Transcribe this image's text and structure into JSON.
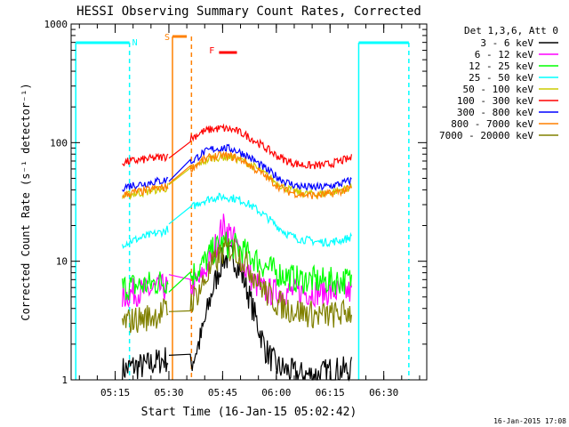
{
  "chart_data": {
    "type": "line",
    "title": "HESSI Observing Summary Count Rates, Corrected",
    "xlabel": "Start Time (16-Jan-15 05:02:42)",
    "ylabel": "Corrected Count Rate (s⁻¹ detector⁻¹)",
    "yscale": "log",
    "ylim": [
      1,
      1000
    ],
    "xlim": [
      "05:02:42",
      "06:42:00"
    ],
    "x_ticks": [
      "05:15",
      "05:30",
      "05:45",
      "06:00",
      "06:15",
      "06:30"
    ],
    "y_ticks": [
      "1",
      "10",
      "100",
      "1000"
    ],
    "legend_title": "Det 1,3,6, Att 0",
    "legend_position": "right",
    "series": [
      {
        "name": "3 - 6 keV",
        "color": "#000000",
        "x": [
          "05:17",
          "05:20",
          "05:23",
          "05:26",
          "05:29",
          "05:36",
          "05:39",
          "05:42",
          "05:45",
          "05:48",
          "05:51",
          "05:54",
          "05:57",
          "06:00",
          "06:03",
          "06:06",
          "06:09",
          "06:12",
          "06:15",
          "06:18",
          "06:21"
        ],
        "y": [
          1.2,
          1.3,
          1.3,
          1.4,
          1.5,
          1.3,
          2.3,
          5.5,
          10.5,
          11,
          7,
          3.5,
          1.8,
          1.3,
          1.2,
          1.1,
          1.1,
          1.1,
          1.2,
          1.2,
          1.2
        ]
      },
      {
        "name": "6 - 12 keV",
        "color": "#ff00ff",
        "x": [
          "05:17",
          "05:20",
          "05:23",
          "05:26",
          "05:29",
          "05:36",
          "05:39",
          "05:42",
          "05:45",
          "05:48",
          "05:51",
          "05:54",
          "05:57",
          "06:00",
          "06:03",
          "06:06",
          "06:09",
          "06:12",
          "06:15",
          "06:18",
          "06:21"
        ],
        "y": [
          5,
          5.5,
          5.5,
          5.8,
          6,
          6,
          7,
          11,
          20,
          16,
          9,
          6.5,
          5.5,
          5.5,
          5.5,
          5.5,
          5.5,
          5.5,
          5.5,
          5.5,
          5.5
        ]
      },
      {
        "name": "12 - 25 keV",
        "color": "#00ff00",
        "x": [
          "05:17",
          "05:20",
          "05:23",
          "05:26",
          "05:29",
          "05:36",
          "05:39",
          "05:42",
          "05:45",
          "05:48",
          "05:51",
          "05:54",
          "05:57",
          "06:00",
          "06:03",
          "06:06",
          "06:09",
          "06:12",
          "06:15",
          "06:18",
          "06:21"
        ],
        "y": [
          6,
          6.2,
          6.3,
          6.5,
          6.8,
          7.5,
          9,
          12,
          14,
          13.5,
          12,
          10.5,
          9,
          8,
          7.5,
          7,
          7,
          6.8,
          6.8,
          6.8,
          7
        ]
      },
      {
        "name": "25 - 50 keV",
        "color": "#00ffff",
        "x": [
          "05:17",
          "05:20",
          "05:23",
          "05:26",
          "05:29",
          "05:36",
          "05:39",
          "05:42",
          "05:45",
          "05:48",
          "05:51",
          "05:54",
          "05:57",
          "06:00",
          "06:03",
          "06:06",
          "06:09",
          "06:12",
          "06:15",
          "06:18",
          "06:21"
        ],
        "y": [
          14,
          15,
          16,
          17,
          18,
          28,
          32,
          34,
          35,
          34,
          32,
          28,
          24,
          20,
          17,
          15.5,
          15,
          14.5,
          14.5,
          15,
          16
        ]
      },
      {
        "name": "50 - 100 keV",
        "color": "#cccc00",
        "x": [
          "05:17",
          "05:20",
          "05:23",
          "05:26",
          "05:29",
          "05:36",
          "05:39",
          "05:42",
          "05:45",
          "05:48",
          "05:51",
          "05:54",
          "05:57",
          "06:00",
          "06:03",
          "06:06",
          "06:09",
          "06:12",
          "06:15",
          "06:18",
          "06:21"
        ],
        "y": [
          35,
          37,
          38,
          40,
          41,
          58,
          68,
          74,
          76,
          75,
          70,
          62,
          54,
          46,
          41,
          38,
          37,
          37,
          38,
          40,
          42
        ]
      },
      {
        "name": "100 - 300 keV",
        "color": "#ff0000",
        "x": [
          "05:17",
          "05:20",
          "05:23",
          "05:26",
          "05:29",
          "05:36",
          "05:39",
          "05:42",
          "05:45",
          "05:48",
          "05:51",
          "05:54",
          "05:57",
          "06:00",
          "06:03",
          "06:06",
          "06:09",
          "06:12",
          "06:15",
          "06:18",
          "06:21"
        ],
        "y": [
          68,
          70,
          72,
          74,
          76,
          108,
          122,
          130,
          132,
          128,
          118,
          104,
          90,
          78,
          70,
          66,
          64,
          64,
          66,
          70,
          74
        ]
      },
      {
        "name": "300 - 800 keV",
        "color": "#0000ff",
        "x": [
          "05:17",
          "05:20",
          "05:23",
          "05:26",
          "05:29",
          "05:36",
          "05:39",
          "05:42",
          "05:45",
          "05:48",
          "05:51",
          "05:54",
          "05:57",
          "06:00",
          "06:03",
          "06:06",
          "06:09",
          "06:12",
          "06:15",
          "06:18",
          "06:21"
        ],
        "y": [
          42,
          44,
          45,
          47,
          48,
          68,
          80,
          88,
          90,
          88,
          80,
          70,
          60,
          52,
          46,
          43,
          42,
          42,
          43,
          45,
          48
        ]
      },
      {
        "name": "800 - 7000 keV",
        "color": "#ff8000",
        "x": [
          "05:17",
          "05:20",
          "05:23",
          "05:26",
          "05:29",
          "05:36",
          "05:39",
          "05:42",
          "05:45",
          "05:48",
          "05:51",
          "05:54",
          "05:57",
          "06:00",
          "06:03",
          "06:06",
          "06:09",
          "06:12",
          "06:15",
          "06:18",
          "06:21"
        ],
        "y": [
          36,
          38,
          39,
          41,
          42,
          60,
          70,
          76,
          78,
          76,
          70,
          60,
          52,
          44,
          39,
          37,
          36,
          36,
          37,
          39,
          41
        ]
      },
      {
        "name": "7000 - 20000 keV",
        "color": "#808000",
        "x": [
          "05:17",
          "05:20",
          "05:23",
          "05:26",
          "05:29",
          "05:36",
          "05:39",
          "05:42",
          "05:45",
          "05:48",
          "05:51",
          "05:54",
          "05:57",
          "06:00",
          "06:03",
          "06:06",
          "06:09",
          "06:12",
          "06:15",
          "06:18",
          "06:21"
        ],
        "y": [
          3,
          3.2,
          3.3,
          3.5,
          3.8,
          4.5,
          6,
          9,
          12,
          13,
          10,
          7.5,
          5.5,
          4.5,
          4,
          3.8,
          3.6,
          3.5,
          3.5,
          3.6,
          3.8
        ]
      }
    ],
    "annotations": [
      {
        "text": "N",
        "color": "#00ffff"
      },
      {
        "text": "S",
        "color": "#ff8000"
      },
      {
        "text": "F",
        "color": "#ff0000"
      }
    ]
  },
  "footer_timestamp": "16-Jan-2015 17:08"
}
